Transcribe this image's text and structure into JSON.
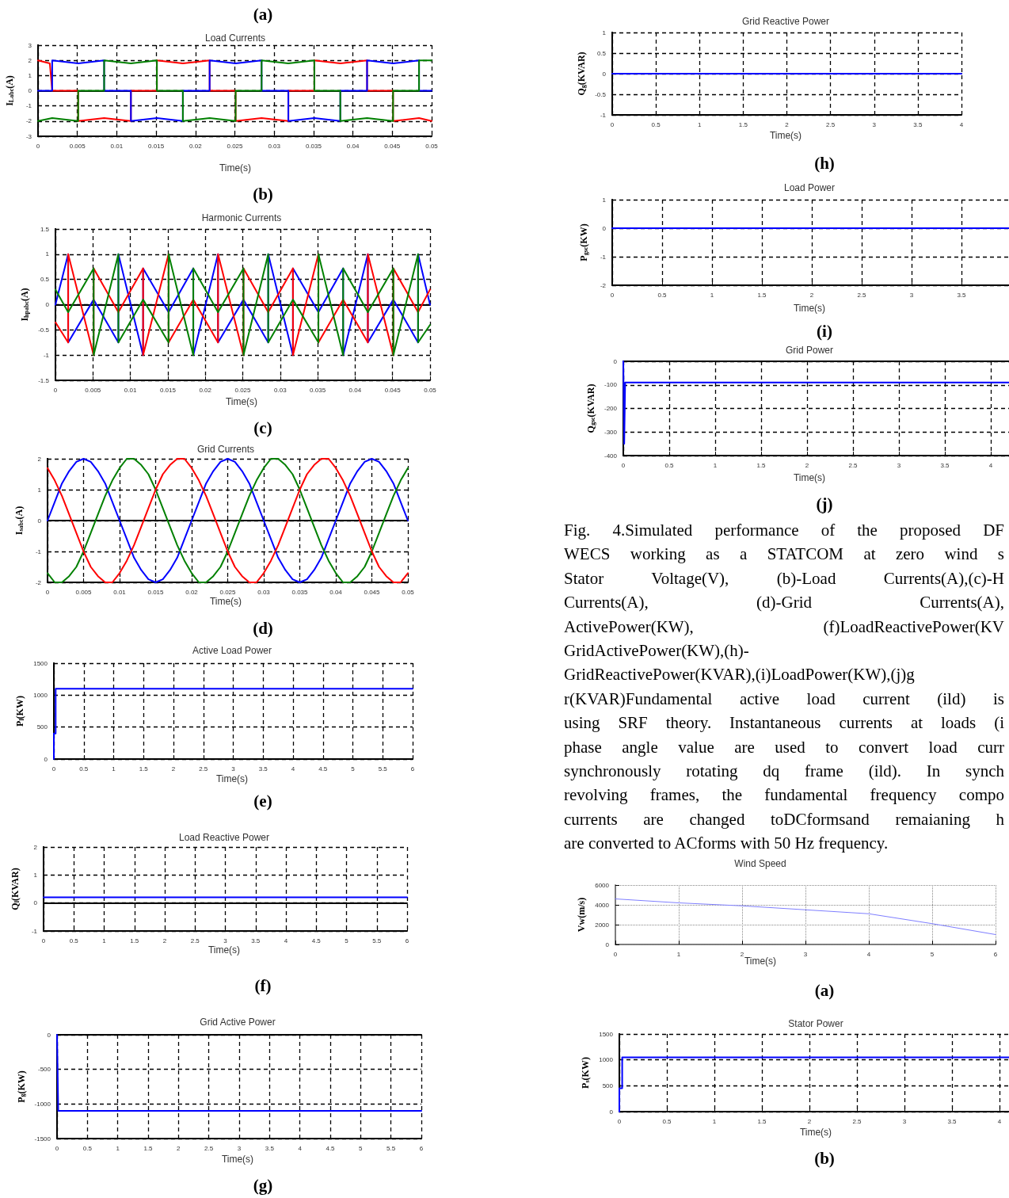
{
  "chart_data": [
    {
      "type": "line",
      "title": "Load Currents",
      "xlabel": "Time(s)",
      "ylabel": "I$_{Labc}$(A)",
      "xlim": [
        0,
        0.05
      ],
      "xticks": [
        0,
        0.005,
        0.01,
        0.015,
        0.02,
        0.025,
        0.03,
        0.035,
        0.04,
        0.045,
        0.05
      ],
      "ylim": [
        -3,
        3
      ],
      "yticks": [
        -3,
        -2,
        -1,
        0,
        1,
        2,
        3
      ],
      "grid": true,
      "annotations": [
        "(a)",
        "(b)"
      ],
      "series": [
        {
          "color": "#ff0000",
          "x": [
            0,
            0.0015,
            0.0018,
            0.0051,
            0.0051,
            0.0084,
            0.0118,
            0.0118,
            0.0151,
            0.0151,
            0.0184,
            0.0218,
            0.0218,
            0.0251,
            0.0251,
            0.0284,
            0.0318,
            0.0318,
            0.0351,
            0.0351,
            0.0384,
            0.0418,
            0.0418,
            0.0451,
            0.0451,
            0.0484,
            0.05
          ],
          "values": [
            2,
            1.8,
            0,
            0,
            -2,
            -1.8,
            -2,
            0,
            0,
            2,
            1.8,
            2,
            0,
            0,
            -2,
            -1.8,
            -2,
            0,
            0,
            2,
            1.8,
            2,
            0,
            0,
            -2,
            -1.8,
            -2
          ]
        },
        {
          "color": "#0000ff",
          "x": [
            0,
            0.0018,
            0.0018,
            0.0051,
            0.0084,
            0.0084,
            0.0118,
            0.0118,
            0.0151,
            0.0184,
            0.0184,
            0.0218,
            0.0218,
            0.0251,
            0.0284,
            0.0284,
            0.0318,
            0.0318,
            0.0351,
            0.0384,
            0.0384,
            0.0418,
            0.0418,
            0.0451,
            0.0484,
            0.0484,
            0.05
          ],
          "values": [
            0,
            0,
            2,
            1.8,
            2,
            0,
            0,
            -2,
            -1.8,
            -2,
            0,
            0,
            2,
            1.8,
            2,
            0,
            0,
            -2,
            -1.8,
            -2,
            0,
            0,
            2,
            1.8,
            2,
            0,
            0
          ]
        },
        {
          "color": "#008000",
          "x": [
            0,
            0.0018,
            0.0051,
            0.0051,
            0.0084,
            0.0084,
            0.0118,
            0.0151,
            0.0151,
            0.0184,
            0.0184,
            0.0218,
            0.0251,
            0.0251,
            0.0284,
            0.0284,
            0.0318,
            0.0351,
            0.0351,
            0.0384,
            0.0384,
            0.0418,
            0.0451,
            0.0451,
            0.0484,
            0.0484,
            0.05
          ],
          "values": [
            -2,
            -1.8,
            -2,
            0,
            0,
            2,
            1.8,
            2,
            0,
            0,
            -2,
            -1.8,
            -2,
            0,
            0,
            2,
            1.8,
            2,
            0,
            0,
            -2,
            -1.8,
            -2,
            0,
            0,
            2,
            2
          ]
        }
      ]
    },
    {
      "type": "line",
      "title": "Harmonic Currents",
      "xlabel": "Time(s)",
      "ylabel": "I$_{hpabc}$(A)",
      "xlim": [
        0,
        0.05
      ],
      "xticks": [
        0,
        0.005,
        0.01,
        0.015,
        0.02,
        0.025,
        0.03,
        0.035,
        0.04,
        0.045,
        0.05
      ],
      "ylim": [
        -1.5,
        1.5
      ],
      "yticks": [
        -1.5,
        -1,
        -0.5,
        0,
        0.5,
        1,
        1.5
      ],
      "grid": true,
      "annotations": [
        "(c)"
      ],
      "series": [
        {
          "color": "#0000ff",
          "x": [
            0,
            0.0017,
            0.0017,
            0.0051,
            0.0084,
            0.0084,
            0.0117,
            0.0117,
            0.0151,
            0.0184,
            0.0184,
            0.0217,
            0.0217,
            0.0251,
            0.0284,
            0.0284,
            0.0317,
            0.0317,
            0.0351,
            0.0384,
            0.0384,
            0.0417,
            0.0417,
            0.0451,
            0.0484,
            0.0484,
            0.05
          ],
          "values": [
            0,
            1,
            -0.75,
            0.1,
            -0.75,
            1,
            -1,
            0.72,
            -0.15,
            0.72,
            -1,
            1,
            -0.75,
            0.1,
            -0.75,
            1,
            -1,
            0.72,
            -0.15,
            0.72,
            -1,
            1,
            -0.75,
            0.1,
            -0.75,
            1,
            0
          ]
        },
        {
          "color": "#ff0000",
          "x": [
            0,
            0.0017,
            0.0017,
            0.0051,
            0.0051,
            0.0084,
            0.0117,
            0.0117,
            0.0151,
            0.0151,
            0.0184,
            0.0217,
            0.0217,
            0.0251,
            0.0251,
            0.0284,
            0.0317,
            0.0317,
            0.0351,
            0.0351,
            0.0384,
            0.0417,
            0.0417,
            0.0451,
            0.0451,
            0.0484,
            0.05
          ],
          "values": [
            -0.35,
            -0.75,
            1,
            -1,
            0.72,
            -0.15,
            0.72,
            -1,
            1,
            -0.75,
            0.1,
            -0.75,
            1,
            -1,
            0.72,
            -0.15,
            0.72,
            -1,
            1,
            -0.75,
            0.1,
            -0.75,
            1,
            -1,
            0.72,
            -0.15,
            0.3
          ]
        },
        {
          "color": "#008000",
          "x": [
            0,
            0.0017,
            0.0051,
            0.0051,
            0.0084,
            0.0084,
            0.0117,
            0.0151,
            0.0151,
            0.0184,
            0.0184,
            0.0217,
            0.0251,
            0.0251,
            0.0284,
            0.0284,
            0.0317,
            0.0351,
            0.0351,
            0.0384,
            0.0384,
            0.0417,
            0.0451,
            0.0451,
            0.0484,
            0.0484,
            0.05
          ],
          "values": [
            0.3,
            -0.15,
            0.72,
            -1,
            1,
            -0.75,
            0.1,
            -0.75,
            1,
            -1,
            0.72,
            -0.15,
            0.72,
            -1,
            1,
            -0.75,
            0.1,
            -0.75,
            1,
            -1,
            0.72,
            -0.15,
            0.72,
            -1,
            1,
            -0.75,
            -0.4
          ]
        }
      ]
    },
    {
      "type": "line",
      "title": "Grid Currents",
      "xlabel": "Time(s)",
      "ylabel": "I$_{sabc}$(A)",
      "xlim": [
        0,
        0.05
      ],
      "xticks": [
        0,
        0.005,
        0.01,
        0.015,
        0.02,
        0.025,
        0.03,
        0.035,
        0.04,
        0.045,
        0.05
      ],
      "ylim": [
        -2,
        2
      ],
      "yticks": [
        -2,
        -1,
        0,
        1,
        2
      ],
      "grid": true,
      "annotations": [
        "(d)"
      ],
      "x": [
        0,
        0.001,
        0.002,
        0.003,
        0.004,
        0.005,
        0.006,
        0.007,
        0.008,
        0.009,
        0.01,
        0.011,
        0.012,
        0.013,
        0.014,
        0.015,
        0.016,
        0.017,
        0.018,
        0.019,
        0.02,
        0.021,
        0.022,
        0.023,
        0.024,
        0.025,
        0.026,
        0.027,
        0.028,
        0.029,
        0.03,
        0.031,
        0.032,
        0.033,
        0.034,
        0.035,
        0.036,
        0.037,
        0.038,
        0.039,
        0.04,
        0.041,
        0.042,
        0.043,
        0.044,
        0.045,
        0.046,
        0.047,
        0.048,
        0.049,
        0.05
      ],
      "series": [
        {
          "color": "#0000ff",
          "values": [
            0,
            0.6,
            1.2,
            1.6,
            1.9,
            2,
            1.9,
            1.6,
            1.2,
            0.6,
            0,
            -0.6,
            -1.2,
            -1.6,
            -1.9,
            -2,
            -1.9,
            -1.6,
            -1.2,
            -0.6,
            0,
            0.6,
            1.2,
            1.6,
            1.9,
            2,
            1.9,
            1.6,
            1.2,
            0.6,
            0,
            -0.6,
            -1.2,
            -1.6,
            -1.9,
            -2,
            -1.9,
            -1.6,
            -1.2,
            -0.6,
            0,
            0.6,
            1.2,
            1.6,
            1.9,
            2,
            1.9,
            1.6,
            1.2,
            0.6,
            0
          ]
        },
        {
          "color": "#008000",
          "values": [
            -1.7,
            -2,
            -2,
            -1.8,
            -1.5,
            -1,
            -0.4,
            0.2,
            0.8,
            1.3,
            1.7,
            2,
            2,
            1.8,
            1.5,
            1,
            0.4,
            -0.2,
            -0.8,
            -1.3,
            -1.7,
            -2,
            -2,
            -1.8,
            -1.5,
            -1,
            -0.4,
            0.2,
            0.8,
            1.3,
            1.7,
            2,
            2,
            1.8,
            1.5,
            1,
            0.4,
            -0.2,
            -0.8,
            -1.3,
            -1.7,
            -2,
            -2,
            -1.8,
            -1.5,
            -1,
            -0.4,
            0.2,
            0.8,
            1.3,
            1.7
          ]
        },
        {
          "color": "#ff0000",
          "values": [
            1.7,
            1.3,
            0.8,
            0.2,
            -0.4,
            -1,
            -1.5,
            -1.8,
            -2,
            -2,
            -1.7,
            -1.3,
            -0.8,
            -0.2,
            0.4,
            1,
            1.5,
            1.8,
            2,
            2,
            1.7,
            1.3,
            0.8,
            0.2,
            -0.4,
            -1,
            -1.5,
            -1.8,
            -2,
            -2,
            -1.7,
            -1.3,
            -0.8,
            -0.2,
            0.4,
            1,
            1.5,
            1.8,
            2,
            2,
            1.7,
            1.3,
            0.8,
            0.2,
            -0.4,
            -1,
            -1.5,
            -1.8,
            -2,
            -2,
            -1.7
          ]
        }
      ]
    },
    {
      "type": "line",
      "title": "Active Load Power",
      "xlabel": "Time(s)",
      "ylabel": "P$_{l}$(KW)",
      "xlim": [
        0,
        6
      ],
      "xticks": [
        0,
        0.5,
        1,
        1.5,
        2,
        2.5,
        3,
        3.5,
        4,
        4.5,
        5,
        5.5,
        6
      ],
      "ylim": [
        0,
        1500
      ],
      "yticks": [
        0,
        500,
        1000,
        1500
      ],
      "grid": true,
      "annotations": [
        "(e)"
      ],
      "series": [
        {
          "color": "#0000ff",
          "x": [
            0,
            0,
            0.03,
            0.03,
            6
          ],
          "values": [
            0,
            400,
            400,
            1100,
            1100
          ]
        }
      ]
    },
    {
      "type": "line",
      "title": "Load Reactive Power",
      "xlabel": "Time(s)",
      "ylabel": "Q$_{l}$(KVAR)",
      "xlim": [
        0,
        6
      ],
      "xticks": [
        0,
        0.5,
        1,
        1.5,
        2,
        2.5,
        3,
        3.5,
        4,
        4.5,
        5,
        5.5,
        6
      ],
      "ylim": [
        -1,
        2
      ],
      "yticks": [
        -1,
        0,
        1,
        2
      ],
      "grid": true,
      "annotations": [
        "(f)"
      ],
      "series": [
        {
          "color": "#0000ff",
          "x": [
            0,
            6
          ],
          "values": [
            0.2,
            0.2
          ]
        }
      ]
    },
    {
      "type": "line",
      "title": "Grid Active Power",
      "xlabel": "Time(s)",
      "ylabel": "P$_{g}$(KW)",
      "xlim": [
        0,
        6
      ],
      "xticks": [
        0,
        0.5,
        1,
        1.5,
        2,
        2.5,
        3,
        3.5,
        4,
        4.5,
        5,
        5.5,
        6
      ],
      "ylim": [
        -1500,
        0
      ],
      "yticks": [
        -1500,
        -1000,
        -500,
        0
      ],
      "grid": true,
      "annotations": [
        "(g)"
      ],
      "series": [
        {
          "color": "#0000ff",
          "x": [
            0,
            0.02,
            6
          ],
          "values": [
            0,
            -1100,
            -1100
          ]
        }
      ]
    },
    {
      "type": "line",
      "title": "Grid Reactive Power",
      "xlabel": "Time(s)",
      "ylabel": "Q$_{g}$(KVAR)",
      "xlim": [
        0,
        4
      ],
      "xticks": [
        0,
        0.5,
        1,
        1.5,
        2,
        2.5,
        3,
        3.5,
        4
      ],
      "ylim": [
        -1,
        1
      ],
      "yticks": [
        -1,
        -0.5,
        0,
        0.5,
        1
      ],
      "grid": true,
      "annotations": [
        "(h)"
      ],
      "series": [
        {
          "color": "#0000ff",
          "x": [
            0,
            4
          ],
          "values": [
            0,
            0
          ]
        }
      ]
    },
    {
      "type": "line",
      "title": "Load Power",
      "xlabel": "Time(s)",
      "ylabel": "P$_{gsc}$(KW)",
      "xlim": [
        0,
        6
      ],
      "xticks": [
        0,
        0.5,
        1,
        1.5,
        2,
        2.5,
        3,
        3.5
      ],
      "ylim": [
        -2,
        1
      ],
      "yticks": [
        -2,
        -1,
        0,
        1
      ],
      "grid": true,
      "annotations": [
        "(i)"
      ],
      "series": [
        {
          "color": "#0000ff",
          "x": [
            0,
            6
          ],
          "values": [
            0,
            0
          ]
        }
      ]
    },
    {
      "type": "line",
      "title": "Grid Power",
      "xlabel": "Time(s)",
      "ylabel": "Q$_{gsc}$(KVAR)",
      "xlim": [
        0,
        6
      ],
      "xticks": [
        0,
        0.5,
        1,
        1.5,
        2,
        2.5,
        3,
        3.5,
        4
      ],
      "ylim": [
        -400,
        0
      ],
      "yticks": [
        -400,
        -300,
        -200,
        -100,
        0
      ],
      "grid": true,
      "annotations": [
        "(j)",
        "Fig. 4.Simulated performance of the proposed DF",
        "WECS working as a STATCOM at zero wind s",
        "Stator Voltage(V), (b)-Load Currents(A),(c)-H",
        "Currents(A), (d)-Grid Currents(A),",
        "ActivePower(KW), (f)LoadReactivePower(KV",
        "GridActivePower(KW),(h)-",
        "GridReactivePower(KVAR),(i)LoadPower(KW),(j)g",
        "r(KVAR)Fundamental active load current (ild) is",
        "using SRF theory. Instantaneous currents at loads (i",
        "phase angle value are used to convert load curr",
        "synchronously rotating dq frame (ild). In synch",
        "revolving frames, the fundamental frequency compo",
        "currents are changed  toDCformsand remaianing h",
        "are converted to ACforms with 50 Hz frequency."
      ],
      "series": [
        {
          "color": "#0000ff",
          "x": [
            0,
            0.01,
            0.02,
            6
          ],
          "values": [
            0,
            -350,
            -90,
            -90
          ]
        }
      ]
    },
    {
      "type": "line",
      "title": "Wind Speed",
      "xlabel": "Time(s)",
      "ylabel": "Vw(m/s)",
      "xlim": [
        0,
        6
      ],
      "xticks": [
        0,
        1,
        2,
        3,
        4,
        5,
        6
      ],
      "ylim": [
        0,
        6000
      ],
      "yticks": [
        0,
        2000,
        4000,
        6000
      ],
      "grid": true,
      "annotations": [
        "(a)"
      ],
      "series": [
        {
          "color": "#8080ff",
          "x": [
            0,
            1,
            2,
            3,
            4,
            5,
            6
          ],
          "values": [
            4600,
            4200,
            3900,
            3500,
            3100,
            2100,
            1000
          ]
        }
      ]
    },
    {
      "type": "line",
      "title": "Stator Power",
      "xlabel": "Time(s)",
      "ylabel": "P$_{s}$(KW)",
      "xlim": [
        0,
        6
      ],
      "xticks": [
        0,
        0.5,
        1,
        1.5,
        2,
        2.5,
        3,
        3.5,
        4
      ],
      "ylim": [
        0,
        1500
      ],
      "yticks": [
        0,
        500,
        1000,
        1500
      ],
      "grid": true,
      "annotations": [
        "(b)"
      ],
      "series": [
        {
          "color": "#0000ff",
          "x": [
            0,
            0,
            0.03,
            0.03,
            6
          ],
          "values": [
            0,
            450,
            450,
            1050,
            1050
          ]
        }
      ]
    }
  ]
}
